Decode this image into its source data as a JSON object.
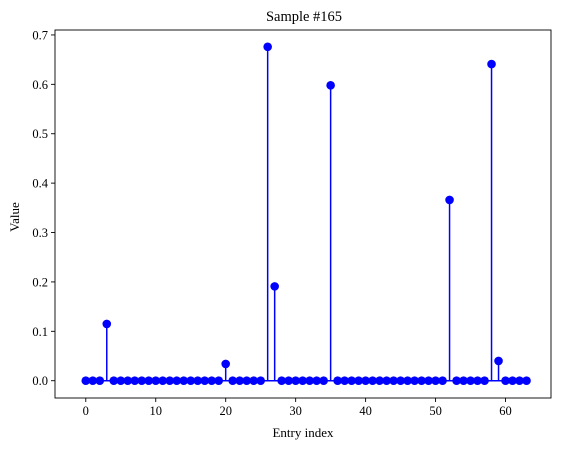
{
  "chart_data": {
    "type": "stem",
    "title": "Sample #165",
    "xlabel": "Entry index",
    "ylabel": "Value",
    "xlim": [
      -4.4,
      66.5
    ],
    "ylim": [
      -0.035,
      0.71
    ],
    "xticks": [
      0,
      10,
      20,
      30,
      40,
      50,
      60
    ],
    "yticks": [
      0.0,
      0.1,
      0.2,
      0.3,
      0.4,
      0.5,
      0.6,
      0.7
    ],
    "grid": false,
    "color": "#0000ff",
    "series": [
      {
        "x": [
          0,
          1,
          2,
          3,
          4,
          5,
          6,
          7,
          8,
          9,
          10,
          11,
          12,
          13,
          14,
          15,
          16,
          17,
          18,
          19,
          20,
          21,
          22,
          23,
          24,
          25,
          26,
          27,
          28,
          29,
          30,
          31,
          32,
          33,
          34,
          35,
          36,
          37,
          38,
          39,
          40,
          41,
          42,
          43,
          44,
          45,
          46,
          47,
          48,
          49,
          50,
          51,
          52,
          53,
          54,
          55,
          56,
          57,
          58,
          59,
          60,
          61,
          62,
          63
        ],
        "values": [
          0,
          0,
          0,
          0.115,
          0,
          0,
          0,
          0,
          0,
          0,
          0,
          0,
          0,
          0,
          0,
          0,
          0,
          0,
          0,
          0,
          0.034,
          0,
          0,
          0,
          0,
          0,
          0.676,
          0.191,
          0,
          0,
          0,
          0,
          0,
          0,
          0,
          0.598,
          0,
          0,
          0,
          0,
          0,
          0,
          0,
          0,
          0,
          0,
          0,
          0,
          0,
          0,
          0,
          0,
          0.366,
          0,
          0,
          0,
          0,
          0,
          0.641,
          0.04,
          0,
          0,
          0,
          0
        ]
      }
    ]
  }
}
